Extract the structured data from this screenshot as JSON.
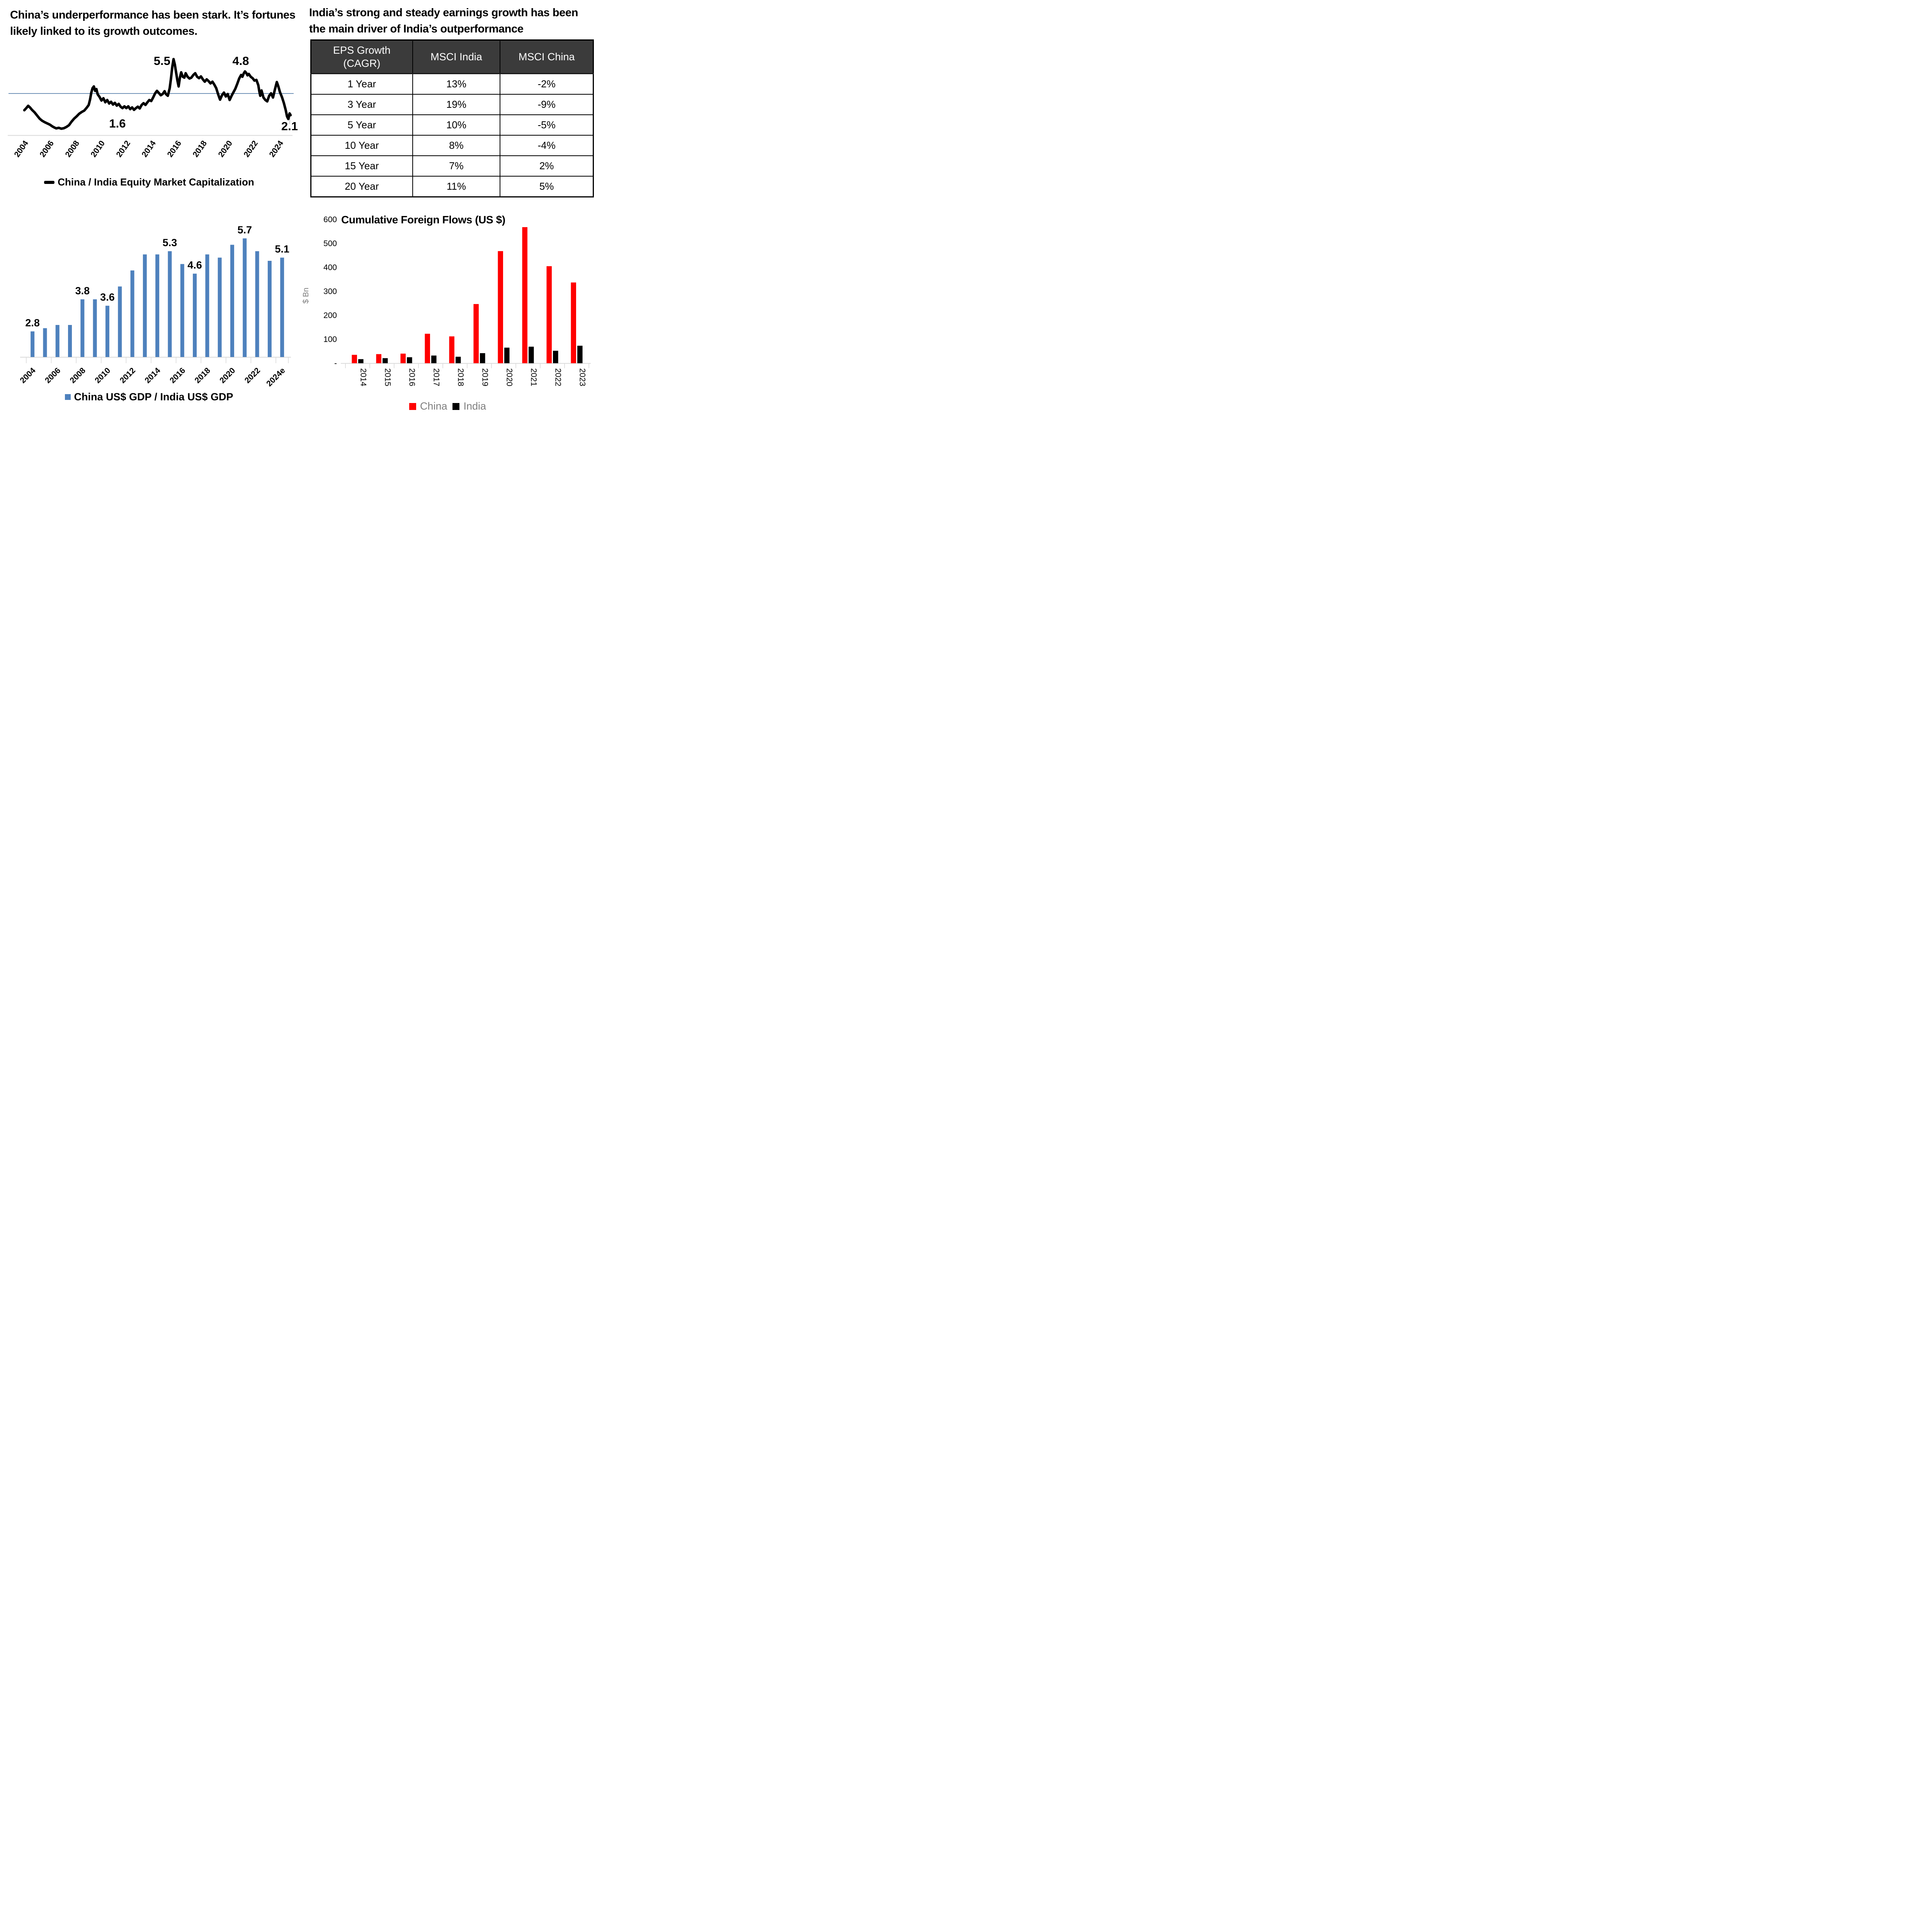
{
  "colors": {
    "line_series": "#000000",
    "mean_line": "#4E79A7",
    "grid": "#D9D9D9",
    "leader": "#BFBFBF",
    "gray_text": "#7F7F7F",
    "table_header_bg": "#3B3B3B"
  },
  "chart_data": [
    {
      "id": "market_cap_ratio",
      "type": "line",
      "title": "China’s underperformance has been stark. It’s fortunes likely linked to its growth outcomes.",
      "series_name": "China / India Equity Market Capitalization",
      "line_color": "#000000",
      "mean_line": 3.55,
      "xlim": [
        2004,
        2025
      ],
      "ylim": [
        1.18,
        5.55
      ],
      "x_ticks": [
        2004,
        2006,
        2008,
        2010,
        2012,
        2014,
        2016,
        2018,
        2020,
        2022,
        2024
      ],
      "grid": "off",
      "legend_position": "bottom",
      "annotations": [
        {
          "text": "5.5",
          "year": 2015.45,
          "value": 5.17,
          "anchor": "end"
        },
        {
          "text": "4.8",
          "year": 2020.97,
          "value": 5.17,
          "anchor": "middle"
        },
        {
          "text": "1.6",
          "year": 2011.3,
          "value": 1.62,
          "anchor": "middle"
        },
        {
          "text": "2.1",
          "year": 2024.8,
          "value": 1.47,
          "anchor": "middle"
        }
      ],
      "leader_line": {
        "x1": 2024.85,
        "y1": 2.35,
        "x2": 2024.8,
        "y2": 1.82
      },
      "points": [
        [
          2004,
          2.6
        ],
        [
          2004.15,
          2.72
        ],
        [
          2004.3,
          2.85
        ],
        [
          2004.45,
          2.75
        ],
        [
          2004.6,
          2.62
        ],
        [
          2004.8,
          2.48
        ],
        [
          2005,
          2.3
        ],
        [
          2005.2,
          2.12
        ],
        [
          2005.4,
          2.0
        ],
        [
          2005.6,
          1.92
        ],
        [
          2005.8,
          1.85
        ],
        [
          2006,
          1.78
        ],
        [
          2006.2,
          1.68
        ],
        [
          2006.35,
          1.62
        ],
        [
          2006.5,
          1.57
        ],
        [
          2006.7,
          1.6
        ],
        [
          2006.9,
          1.55
        ],
        [
          2007.1,
          1.58
        ],
        [
          2007.3,
          1.65
        ],
        [
          2007.5,
          1.75
        ],
        [
          2007.7,
          1.95
        ],
        [
          2007.9,
          2.12
        ],
        [
          2008.1,
          2.25
        ],
        [
          2008.3,
          2.4
        ],
        [
          2008.5,
          2.5
        ],
        [
          2008.7,
          2.58
        ],
        [
          2008.9,
          2.75
        ],
        [
          2009.05,
          2.9
        ],
        [
          2009.15,
          3.2
        ],
        [
          2009.25,
          3.6
        ],
        [
          2009.35,
          3.85
        ],
        [
          2009.45,
          3.95
        ],
        [
          2009.55,
          3.7
        ],
        [
          2009.65,
          3.8
        ],
        [
          2009.75,
          3.5
        ],
        [
          2009.9,
          3.35
        ],
        [
          2010.05,
          3.15
        ],
        [
          2010.2,
          3.28
        ],
        [
          2010.35,
          3.05
        ],
        [
          2010.5,
          3.18
        ],
        [
          2010.65,
          2.98
        ],
        [
          2010.8,
          3.08
        ],
        [
          2010.95,
          2.92
        ],
        [
          2011.1,
          3.02
        ],
        [
          2011.25,
          2.86
        ],
        [
          2011.4,
          2.96
        ],
        [
          2011.55,
          2.8
        ],
        [
          2011.7,
          2.72
        ],
        [
          2011.85,
          2.82
        ],
        [
          2012,
          2.72
        ],
        [
          2012.15,
          2.82
        ],
        [
          2012.3,
          2.66
        ],
        [
          2012.45,
          2.76
        ],
        [
          2012.6,
          2.62
        ],
        [
          2012.75,
          2.72
        ],
        [
          2012.9,
          2.8
        ],
        [
          2013.05,
          2.7
        ],
        [
          2013.2,
          2.9
        ],
        [
          2013.35,
          3.0
        ],
        [
          2013.5,
          2.9
        ],
        [
          2013.65,
          3.05
        ],
        [
          2013.8,
          3.18
        ],
        [
          2013.95,
          3.12
        ],
        [
          2014.1,
          3.32
        ],
        [
          2014.25,
          3.55
        ],
        [
          2014.4,
          3.7
        ],
        [
          2014.55,
          3.58
        ],
        [
          2014.7,
          3.45
        ],
        [
          2014.85,
          3.52
        ],
        [
          2015,
          3.68
        ],
        [
          2015.1,
          3.52
        ],
        [
          2015.25,
          3.42
        ],
        [
          2015.4,
          3.85
        ],
        [
          2015.5,
          4.4
        ],
        [
          2015.6,
          5.05
        ],
        [
          2015.7,
          5.5
        ],
        [
          2015.8,
          5.2
        ],
        [
          2015.9,
          4.75
        ],
        [
          2016,
          4.3
        ],
        [
          2016.1,
          3.95
        ],
        [
          2016.2,
          4.45
        ],
        [
          2016.3,
          4.75
        ],
        [
          2016.42,
          4.5
        ],
        [
          2016.55,
          4.45
        ],
        [
          2016.65,
          4.7
        ],
        [
          2016.8,
          4.5
        ],
        [
          2016.95,
          4.4
        ],
        [
          2017.1,
          4.45
        ],
        [
          2017.25,
          4.6
        ],
        [
          2017.4,
          4.7
        ],
        [
          2017.55,
          4.5
        ],
        [
          2017.7,
          4.42
        ],
        [
          2017.85,
          4.52
        ],
        [
          2018,
          4.35
        ],
        [
          2018.15,
          4.22
        ],
        [
          2018.3,
          4.35
        ],
        [
          2018.45,
          4.25
        ],
        [
          2018.6,
          4.12
        ],
        [
          2018.75,
          4.22
        ],
        [
          2018.9,
          4.05
        ],
        [
          2019.05,
          3.85
        ],
        [
          2019.2,
          3.5
        ],
        [
          2019.35,
          3.2
        ],
        [
          2019.5,
          3.45
        ],
        [
          2019.65,
          3.6
        ],
        [
          2019.8,
          3.38
        ],
        [
          2019.95,
          3.52
        ],
        [
          2020.1,
          3.18
        ],
        [
          2020.25,
          3.42
        ],
        [
          2020.4,
          3.62
        ],
        [
          2020.55,
          3.82
        ],
        [
          2020.7,
          4.1
        ],
        [
          2020.85,
          4.4
        ],
        [
          2021,
          4.6
        ],
        [
          2021.1,
          4.5
        ],
        [
          2021.2,
          4.68
        ],
        [
          2021.3,
          4.8
        ],
        [
          2021.4,
          4.72
        ],
        [
          2021.5,
          4.58
        ],
        [
          2021.6,
          4.66
        ],
        [
          2021.75,
          4.5
        ],
        [
          2021.9,
          4.42
        ],
        [
          2022.05,
          4.28
        ],
        [
          2022.2,
          4.32
        ],
        [
          2022.35,
          4.02
        ],
        [
          2022.42,
          3.7
        ],
        [
          2022.5,
          3.42
        ],
        [
          2022.6,
          3.72
        ],
        [
          2022.75,
          3.32
        ],
        [
          2022.9,
          3.18
        ],
        [
          2023.05,
          3.1
        ],
        [
          2023.2,
          3.42
        ],
        [
          2023.35,
          3.56
        ],
        [
          2023.5,
          3.32
        ],
        [
          2023.65,
          3.78
        ],
        [
          2023.8,
          4.2
        ],
        [
          2023.92,
          3.95
        ],
        [
          2024.05,
          3.62
        ],
        [
          2024.2,
          3.35
        ],
        [
          2024.35,
          3.02
        ],
        [
          2024.5,
          2.6
        ],
        [
          2024.6,
          2.25
        ],
        [
          2024.7,
          2.1
        ],
        [
          2024.8,
          2.42
        ],
        [
          2024.88,
          2.32
        ]
      ]
    },
    {
      "id": "eps_growth_table",
      "type": "table",
      "title": "India’s strong and steady earnings growth has been the main driver of India’s outperformance",
      "columns": [
        "EPS Growth\n(CAGR)",
        "MSCI India",
        "MSCI China"
      ],
      "rows": [
        [
          "1 Year",
          "13%",
          "-2%"
        ],
        [
          "3 Year",
          "19%",
          "-9%"
        ],
        [
          "5 Year",
          "10%",
          "-5%"
        ],
        [
          "10 Year",
          "8%",
          "-4%"
        ],
        [
          "15 Year",
          "7%",
          "2%"
        ],
        [
          "20 Year",
          "11%",
          "5%"
        ]
      ]
    },
    {
      "id": "gdp_ratio",
      "type": "bar",
      "series_name": "China US$ GDP / India US$ GDP",
      "color": "#4E81BD",
      "categories": [
        "2004",
        "2005",
        "2006",
        "2007",
        "2008",
        "2009",
        "2010",
        "2011",
        "2012",
        "2013",
        "2014",
        "2015",
        "2016",
        "2017",
        "2018",
        "2019",
        "2020",
        "2021",
        "2022",
        "2023",
        "2024e"
      ],
      "values": [
        2.8,
        2.9,
        3.0,
        3.0,
        3.8,
        3.8,
        3.6,
        4.2,
        4.7,
        5.2,
        5.2,
        5.3,
        4.9,
        4.6,
        5.2,
        5.1,
        5.5,
        5.7,
        5.3,
        5.0,
        5.1
      ],
      "bar_labels": {
        "0": "2.8",
        "4": "3.8",
        "6": "3.6",
        "11": "5.3",
        "13": "4.6",
        "17": "5.7",
        "20": "5.1"
      },
      "x_tick_indices": [
        0,
        2,
        4,
        6,
        8,
        10,
        12,
        14,
        16,
        18,
        20
      ],
      "ylim": [
        2.0,
        6.0
      ],
      "grid": "off",
      "legend_position": "bottom"
    },
    {
      "id": "cumulative_foreign_flows",
      "type": "grouped_bar",
      "title": "Cumulative Foreign Flows (US $)",
      "ylabel": "$ Bn",
      "categories": [
        "2014",
        "2015",
        "2016",
        "2017",
        "2018",
        "2019",
        "2020",
        "2021",
        "2022",
        "2023"
      ],
      "series": [
        {
          "name": "China",
          "color": "#FF0000",
          "values": [
            35,
            38,
            40,
            123,
            112,
            247,
            468,
            568,
            405,
            337
          ]
        },
        {
          "name": "India",
          "color": "#000000",
          "values": [
            17,
            21,
            25,
            32,
            27,
            42,
            65,
            69,
            52,
            73
          ]
        }
      ],
      "ylim": [
        0,
        600
      ],
      "y_ticks": [
        0,
        100,
        200,
        300,
        400,
        500,
        600
      ],
      "y_tick_labels": [
        "-",
        "100",
        "200",
        "300",
        "400",
        "500",
        "600"
      ],
      "grid": "off",
      "legend_position": "bottom"
    }
  ]
}
